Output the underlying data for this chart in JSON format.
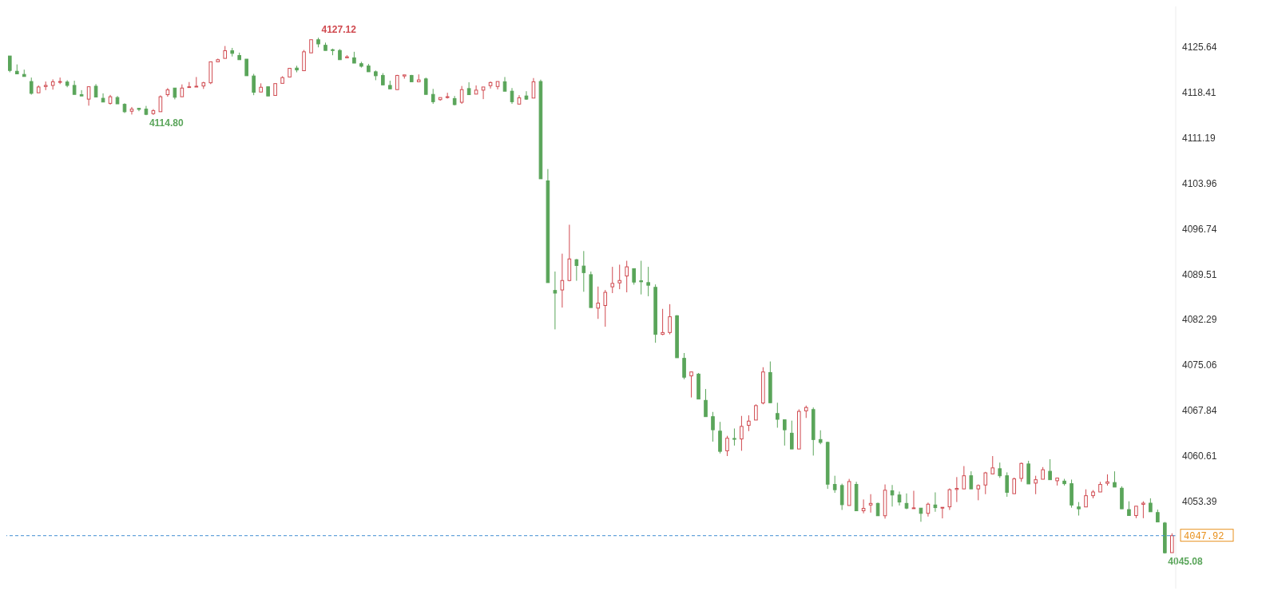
{
  "chart_data": {
    "type": "candlestick",
    "categories": [
      null,
      null,
      null,
      null,
      null,
      null,
      null,
      null,
      null,
      null,
      null,
      null,
      null,
      null,
      null,
      null,
      null,
      null,
      null,
      null,
      null,
      null,
      null,
      null,
      null,
      null,
      null,
      null,
      null,
      null,
      null,
      null,
      null,
      null,
      null,
      null,
      null,
      null,
      null,
      null,
      null,
      null,
      null,
      null,
      null,
      null,
      null,
      null,
      null,
      null,
      null,
      null,
      null,
      null,
      null,
      null,
      null,
      null,
      null,
      null,
      null,
      null,
      null,
      null,
      null,
      null,
      null,
      null,
      null,
      null,
      null,
      null,
      null,
      null,
      null,
      null,
      null,
      null,
      null,
      null,
      null,
      null,
      null,
      null,
      null,
      null,
      null,
      null,
      null,
      null,
      null,
      null,
      null,
      null,
      null,
      null,
      null,
      null,
      null,
      null,
      null,
      null,
      null,
      null,
      null,
      null,
      null,
      null,
      null,
      null,
      null,
      null,
      null,
      null,
      null,
      null,
      null,
      null,
      null,
      null,
      null,
      null,
      null,
      null,
      null,
      null,
      null,
      null,
      null,
      null,
      null,
      null,
      null,
      null,
      null,
      null,
      null,
      null,
      null,
      null,
      null,
      null,
      null,
      null,
      null,
      null,
      null,
      null,
      null,
      null,
      null,
      null,
      null,
      null,
      null,
      null,
      null,
      null,
      null,
      null,
      null,
      null,
      null
    ],
    "ohlc": [
      [
        4124.21,
        4124.21,
        4121.62,
        4121.91
      ],
      [
        4121.78,
        4122.87,
        4121.37,
        4121.37
      ],
      [
        4121.28,
        4122.04,
        4120.95,
        4120.95
      ],
      [
        4120.15,
        4120.78,
        4118.06,
        4118.27
      ],
      [
        4118.36,
        4119.53,
        4118.36,
        4119.28
      ],
      [
        4119.36,
        4120.15,
        4118.78,
        4119.53
      ],
      [
        4119.53,
        4120.49,
        4118.86,
        4120.11
      ],
      [
        4120.03,
        4120.78,
        4119.74,
        4120.15
      ],
      [
        4120.07,
        4120.36,
        4119.24,
        4119.53
      ],
      [
        4119.53,
        4120.28,
        4118.1,
        4118.1
      ],
      [
        4118.06,
        4118.78,
        4117.85,
        4117.85
      ],
      [
        4117.35,
        4119.32,
        4116.31,
        4119.32
      ],
      [
        4119.4,
        4119.74,
        4117.69,
        4117.69
      ],
      [
        4117.48,
        4118.27,
        4116.89,
        4116.89
      ],
      [
        4116.68,
        4118.02,
        4116.48,
        4117.73
      ],
      [
        4117.6,
        4117.85,
        4116.6,
        4116.6
      ],
      [
        4116.52,
        4116.69,
        4115.14,
        4115.35
      ],
      [
        4115.43,
        4116.1,
        4114.9,
        4115.76
      ],
      [
        4115.89,
        4115.89,
        4115.43,
        4115.72
      ],
      [
        4115.76,
        4116.27,
        4114.8,
        4114.93
      ],
      [
        4115.05,
        4115.76,
        4114.85,
        4115.51
      ],
      [
        4115.35,
        4117.94,
        4115.35,
        4117.73
      ],
      [
        4118.06,
        4119.11,
        4117.73,
        4118.82
      ],
      [
        4119.11,
        4119.11,
        4117.31,
        4117.65
      ],
      [
        4117.73,
        4119.69,
        4117.73,
        4119.11
      ],
      [
        4119.24,
        4120.07,
        4119.24,
        4119.32
      ],
      [
        4119.32,
        4120.87,
        4119.32,
        4119.4
      ],
      [
        4119.44,
        4120.11,
        4118.98,
        4119.95
      ],
      [
        4119.95,
        4123.29,
        4119.74,
        4123.29
      ],
      [
        4123.29,
        4123.79,
        4123.29,
        4123.62
      ],
      [
        4123.83,
        4125.8,
        4123.83,
        4125.05
      ],
      [
        4125.05,
        4125.5,
        4124.13,
        4124.63
      ],
      [
        4124.29,
        4124.75,
        4123.62,
        4123.62
      ],
      [
        4123.71,
        4123.71,
        4121.07,
        4121.07
      ],
      [
        4121.03,
        4121.37,
        4117.98,
        4118.44
      ],
      [
        4118.48,
        4119.86,
        4118.48,
        4119.24
      ],
      [
        4119.32,
        4119.32,
        4117.85,
        4117.85
      ],
      [
        4117.94,
        4119.82,
        4117.94,
        4119.82
      ],
      [
        4119.86,
        4120.99,
        4119.86,
        4120.78
      ],
      [
        4120.87,
        4122.25,
        4120.87,
        4122.25
      ],
      [
        4122.29,
        4122.66,
        4121.62,
        4121.99
      ],
      [
        4121.87,
        4125.17,
        4121.87,
        4124.88
      ],
      [
        4124.71,
        4126.8,
        4124.71,
        4126.8
      ],
      [
        4126.8,
        4127.12,
        4125.59,
        4126.13
      ],
      [
        4125.92,
        4126.34,
        4125.09,
        4125.09
      ],
      [
        4125.21,
        4125.38,
        4124.33,
        4125.13
      ],
      [
        4125.09,
        4125.3,
        4123.62,
        4123.62
      ],
      [
        4123.92,
        4124.33,
        4123.92,
        4124.08
      ],
      [
        4123.92,
        4124.88,
        4123.08,
        4123.08
      ],
      [
        4122.99,
        4123.29,
        4122.37,
        4122.58
      ],
      [
        4122.62,
        4122.96,
        4121.7,
        4121.7
      ],
      [
        4121.7,
        4121.91,
        4120.36,
        4121.07
      ],
      [
        4121.12,
        4121.49,
        4119.61,
        4119.61
      ],
      [
        4119.53,
        4120.28,
        4118.98,
        4118.98
      ],
      [
        4118.86,
        4121.2,
        4118.86,
        4121.12
      ],
      [
        4121.03,
        4121.2,
        4120.61,
        4121.2
      ],
      [
        4121.12,
        4121.2,
        4120.11,
        4120.11
      ],
      [
        4120.11,
        4121.28,
        4120.11,
        4120.4
      ],
      [
        4120.57,
        4120.78,
        4118.1,
        4118.1
      ],
      [
        4118.1,
        4118.98,
        4116.6,
        4116.94
      ],
      [
        4117.27,
        4117.6,
        4117.1,
        4117.6
      ],
      [
        4117.6,
        4118.36,
        4117.44,
        4117.73
      ],
      [
        4117.44,
        4117.85,
        4116.35,
        4116.48
      ],
      [
        4116.85,
        4119.44,
        4116.6,
        4118.86
      ],
      [
        4119.03,
        4120.03,
        4118.06,
        4118.06
      ],
      [
        4118.15,
        4119.53,
        4118.15,
        4118.78
      ],
      [
        4118.78,
        4119.28,
        4117.35,
        4119.28
      ],
      [
        4119.49,
        4120.15,
        4119.03,
        4119.99
      ],
      [
        4119.36,
        4120.15,
        4118.9,
        4120.15
      ],
      [
        4120.11,
        4120.87,
        4118.61,
        4118.61
      ],
      [
        4118.61,
        4119.11,
        4116.6,
        4116.94
      ],
      [
        4116.56,
        4117.98,
        4116.56,
        4117.56
      ],
      [
        4117.85,
        4118.61,
        4117.23,
        4117.35
      ],
      [
        4117.52,
        4120.7,
        4117.52,
        4120.11
      ],
      [
        4120.15,
        4120.45,
        4104.68,
        4104.68
      ],
      [
        4104.35,
        4106.23,
        4088.17,
        4088.17
      ],
      [
        4086.92,
        4089.93,
        4080.73,
        4086.5
      ],
      [
        4087.0,
        4092.77,
        4084.2,
        4088.5
      ],
      [
        4088.5,
        4097.37,
        4088.38,
        4091.93
      ],
      [
        4091.81,
        4091.93,
        4088.46,
        4090.89
      ],
      [
        4090.8,
        4093.19,
        4086.71,
        4089.76
      ],
      [
        4089.43,
        4089.93,
        4084.2,
        4084.2
      ],
      [
        4084.11,
        4087.54,
        4082.4,
        4084.91
      ],
      [
        4084.53,
        4087.0,
        4081.15,
        4086.62
      ],
      [
        4087.5,
        4090.68,
        4086.5,
        4088.04
      ],
      [
        4088.13,
        4091.02,
        4087.12,
        4088.5
      ],
      [
        4089.22,
        4091.64,
        4086.62,
        4090.68
      ],
      [
        4090.39,
        4090.39,
        4087.84,
        4088.25
      ],
      [
        4088.46,
        4091.64,
        4086.29,
        4088.3
      ],
      [
        4088.17,
        4090.68,
        4086.0,
        4087.75
      ],
      [
        4087.42,
        4087.88,
        4078.6,
        4079.94
      ],
      [
        4079.94,
        4083.99,
        4079.81,
        4080.23
      ],
      [
        4080.23,
        4084.74,
        4079.94,
        4082.74
      ],
      [
        4082.9,
        4082.99,
        4076.22,
        4076.22
      ],
      [
        4076.13,
        4076.97,
        4072.79,
        4073.12
      ],
      [
        4073.33,
        4073.96,
        4069.9,
        4073.96
      ],
      [
        4073.62,
        4073.79,
        4069.65,
        4069.65
      ],
      [
        4069.44,
        4071.24,
        4066.85,
        4066.85
      ],
      [
        4066.85,
        4067.6,
        4062.88,
        4064.76
      ],
      [
        4064.55,
        4066.02,
        4061.0,
        4061.33
      ],
      [
        4061.42,
        4063.8,
        4060.58,
        4063.42
      ],
      [
        4063.38,
        4064.97,
        4062.25,
        4063.25
      ],
      [
        4063.3,
        4066.97,
        4061.42,
        4065.3
      ],
      [
        4065.47,
        4067.06,
        4064.55,
        4066.14
      ],
      [
        4066.31,
        4068.81,
        4066.31,
        4068.61
      ],
      [
        4069.02,
        4074.71,
        4068.81,
        4073.96
      ],
      [
        4073.87,
        4075.63,
        4069.06,
        4069.06
      ],
      [
        4067.35,
        4069.06,
        4065.09,
        4066.43
      ],
      [
        4066.35,
        4066.35,
        4062.25,
        4064.76
      ],
      [
        4064.22,
        4066.22,
        4061.71,
        4061.71
      ],
      [
        4061.71,
        4068.02,
        4061.71,
        4067.69
      ],
      [
        4067.77,
        4068.61,
        4066.64,
        4068.31
      ],
      [
        4067.98,
        4068.31,
        4060.66,
        4063.21
      ],
      [
        4063.21,
        4064.68,
        4062.46,
        4062.75
      ],
      [
        4062.76,
        4062.88,
        4055.36,
        4056.11
      ],
      [
        4056.07,
        4057.45,
        4054.73,
        4055.23
      ],
      [
        4055.9,
        4056.19,
        4052.01,
        4052.85
      ],
      [
        4052.72,
        4056.95,
        4052.72,
        4056.53
      ],
      [
        4056.07,
        4056.49,
        4051.88,
        4051.88
      ],
      [
        4051.88,
        4053.68,
        4051.47,
        4052.26
      ],
      [
        4052.8,
        4054.52,
        4051.59,
        4053.05
      ],
      [
        4053.05,
        4053.18,
        4051.09,
        4051.09
      ],
      [
        4051.09,
        4056.07,
        4050.63,
        4055.15
      ],
      [
        4055.06,
        4055.98,
        4052.55,
        4054.39
      ],
      [
        4054.39,
        4054.94,
        4052.72,
        4053.27
      ],
      [
        4053.05,
        4054.64,
        4052.13,
        4052.3
      ],
      [
        4052.22,
        4055.06,
        4052.22,
        4052.34
      ],
      [
        4052.3,
        4052.3,
        4050.13,
        4051.47
      ],
      [
        4051.47,
        4053.18,
        4050.96,
        4052.93
      ],
      [
        4052.8,
        4054.81,
        4051.72,
        4052.38
      ],
      [
        4052.34,
        4052.43,
        4050.67,
        4052.43
      ],
      [
        4052.51,
        4055.44,
        4052.01,
        4055.23
      ],
      [
        4055.27,
        4057.24,
        4053.27,
        4055.44
      ],
      [
        4055.36,
        4058.99,
        4055.36,
        4057.45
      ],
      [
        4057.45,
        4058.16,
        4055.36,
        4055.36
      ],
      [
        4055.36,
        4056.07,
        4053.55,
        4055.9
      ],
      [
        4055.98,
        4058.07,
        4054.52,
        4057.91
      ],
      [
        4057.74,
        4060.58,
        4057.74,
        4058.7
      ],
      [
        4058.57,
        4059.54,
        4057.11,
        4057.45
      ],
      [
        4057.45,
        4057.99,
        4054.1,
        4054.81
      ],
      [
        4054.6,
        4057.16,
        4054.6,
        4056.95
      ],
      [
        4057.03,
        4059.54,
        4056.49,
        4059.41
      ],
      [
        4059.33,
        4059.83,
        4056.15,
        4056.15
      ],
      [
        4056.28,
        4057.45,
        4054.52,
        4056.82
      ],
      [
        4056.9,
        4058.83,
        4056.9,
        4058.41
      ],
      [
        4058.16,
        4060.08,
        4056.82,
        4056.82
      ],
      [
        4056.66,
        4057.08,
        4055.89,
        4057.08
      ],
      [
        4056.6,
        4056.96,
        4055.89,
        4056.19
      ],
      [
        4056.19,
        4056.84,
        4052.37,
        4052.79
      ],
      [
        4052.49,
        4053.27,
        4051.12,
        4052.19
      ],
      [
        4052.49,
        4055.29,
        4052.49,
        4054.28
      ],
      [
        4054.28,
        4055.17,
        4053.86,
        4054.87
      ],
      [
        4054.87,
        4056.48,
        4054.87,
        4056.07
      ],
      [
        4056.25,
        4057.67,
        4055.89,
        4056.48
      ],
      [
        4056.37,
        4058.15,
        4055.65,
        4055.65
      ],
      [
        4055.47,
        4055.77,
        4052.19,
        4052.19
      ],
      [
        4052.07,
        4053.39,
        4051.12,
        4051.12
      ],
      [
        4051.12,
        4052.61,
        4050.7,
        4052.61
      ],
      [
        4052.91,
        4053.39,
        4050.7,
        4053.09
      ],
      [
        4053.09,
        4053.86,
        4051.72,
        4051.72
      ],
      [
        4051.6,
        4052.07,
        4050.1,
        4050.1
      ],
      [
        4049.93,
        4050.1,
        4045.08,
        4045.2
      ],
      [
        4045.22,
        4048.3,
        4045.22,
        4047.92
      ]
    ],
    "colors": [
      "#5aa55a",
      "#5aa55a",
      "#5aa55a",
      "#5aa55a",
      "#d04a50",
      "#d04a50",
      "#d04a50",
      "#d04a50",
      "#5aa55a",
      "#5aa55a",
      "#5aa55a",
      "#d04a50",
      "#5aa55a",
      "#5aa55a",
      "#d04a50",
      "#5aa55a",
      "#5aa55a",
      "#d04a50",
      "#5aa55a",
      "#5aa55a",
      "#d04a50",
      "#d04a50",
      "#d04a50",
      "#5aa55a",
      "#d04a50",
      "#d04a50",
      "#d04a50",
      "#d04a50",
      "#d04a50",
      "#d04a50",
      "#d04a50",
      "#5aa55a",
      "#5aa55a",
      "#5aa55a",
      "#5aa55a",
      "#d04a50",
      "#5aa55a",
      "#d04a50",
      "#d04a50",
      "#d04a50",
      "#5aa55a",
      "#d04a50",
      "#d04a50",
      "#5aa55a",
      "#5aa55a",
      "#5aa55a",
      "#5aa55a",
      "#d04a50",
      "#5aa55a",
      "#5aa55a",
      "#5aa55a",
      "#5aa55a",
      "#5aa55a",
      "#5aa55a",
      "#d04a50",
      "#d04a50",
      "#5aa55a",
      "#d04a50",
      "#5aa55a",
      "#5aa55a",
      "#d04a50",
      "#d04a50",
      "#5aa55a",
      "#d04a50",
      "#5aa55a",
      "#d04a50",
      "#d04a50",
      "#d04a50",
      "#d04a50",
      "#5aa55a",
      "#5aa55a",
      "#d04a50",
      "#5aa55a",
      "#d04a50",
      "#5aa55a",
      "#5aa55a",
      "#5aa55a",
      "#d04a50",
      "#d04a50",
      "#5aa55a",
      "#5aa55a",
      "#5aa55a",
      "#d04a50",
      "#d04a50",
      "#d04a50",
      "#d04a50",
      "#d04a50",
      "#5aa55a",
      "#5aa55a",
      "#5aa55a",
      "#5aa55a",
      "#d04a50",
      "#d04a50",
      "#5aa55a",
      "#5aa55a",
      "#d04a50",
      "#5aa55a",
      "#5aa55a",
      "#5aa55a",
      "#5aa55a",
      "#d04a50",
      "#5aa55a",
      "#d04a50",
      "#d04a50",
      "#d04a50",
      "#d04a50",
      "#5aa55a",
      "#5aa55a",
      "#5aa55a",
      "#5aa55a",
      "#d04a50",
      "#d04a50",
      "#5aa55a",
      "#5aa55a",
      "#5aa55a",
      "#5aa55a",
      "#5aa55a",
      "#d04a50",
      "#5aa55a",
      "#d04a50",
      "#d04a50",
      "#5aa55a",
      "#d04a50",
      "#5aa55a",
      "#5aa55a",
      "#5aa55a",
      "#d04a50",
      "#5aa55a",
      "#d04a50",
      "#5aa55a",
      "#d04a50",
      "#d04a50",
      "#d04a50",
      "#d04a50",
      "#5aa55a",
      "#d04a50",
      "#d04a50",
      "#d04a50",
      "#5aa55a",
      "#5aa55a",
      "#d04a50",
      "#d04a50",
      "#5aa55a",
      "#d04a50",
      "#d04a50",
      "#5aa55a",
      "#d04a50",
      "#5aa55a",
      "#5aa55a",
      "#5aa55a",
      "#d04a50",
      "#d04a50",
      "#d04a50",
      "#d04a50",
      "#5aa55a",
      "#5aa55a",
      "#5aa55a",
      "#d04a50",
      "#d04a50",
      "#5aa55a",
      "#5aa55a",
      "#5aa55a",
      "#d04a50"
    ],
    "ylim": [
      4039.5,
      4132.1
    ],
    "yticks": [
      4053.39,
      4060.61,
      4067.84,
      4075.06,
      4082.29,
      4089.51,
      4096.74,
      4103.96,
      4111.19,
      4118.41,
      4125.64
    ],
    "tick_labels": "y",
    "ref_lines": [
      {
        "axis": "y",
        "value": 4047.92,
        "label": "4047.92",
        "color": "#3f8fd2",
        "line_style": "dashed"
      }
    ],
    "annotations": [
      "4127.12",
      "4114.80",
      "4045.08"
    ]
  }
}
